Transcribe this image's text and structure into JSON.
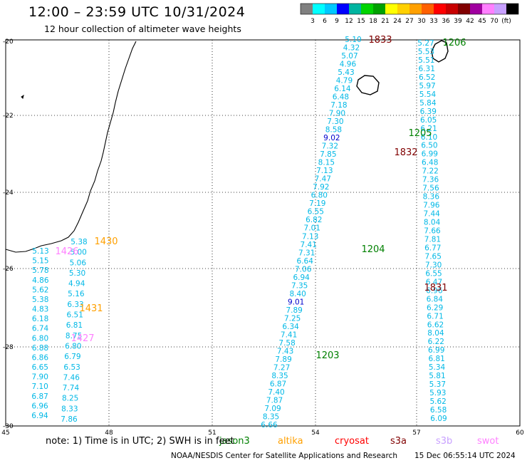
{
  "header": {
    "title": "12:00 – 23:59 UTC 10/31/2024",
    "subtitle": "12 hour collection of altimeter wave heights"
  },
  "colorbar": {
    "colors": [
      "#808080",
      "#00ffff",
      "#00c8ff",
      "#0000ff",
      "#00b4a0",
      "#00d400",
      "#00a000",
      "#ffff00",
      "#ffd000",
      "#ffa000",
      "#ff6000",
      "#ff0000",
      "#c80000",
      "#800000",
      "#a000a0",
      "#ff80ff",
      "#c8a0ff",
      "#000000"
    ],
    "labels": [
      "3",
      "6",
      "9",
      "12",
      "15",
      "18",
      "21",
      "24",
      "27",
      "30",
      "33",
      "36",
      "39",
      "42",
      "45",
      "70",
      "(ft)"
    ]
  },
  "axes": {
    "lat_labels": [
      "-20",
      "-22",
      "-24",
      "-26",
      "-28",
      "-30"
    ],
    "lon_labels": [
      "45",
      "48",
      "51",
      "54",
      "57",
      "60"
    ]
  },
  "passes": [
    {
      "label": "1833",
      "color": "#800000"
    },
    {
      "label": "1206",
      "color": "#008000"
    },
    {
      "label": "1205",
      "color": "#008000"
    },
    {
      "label": "1832",
      "color": "#800000"
    },
    {
      "label": "1430",
      "color": "#ffa000"
    },
    {
      "label": "1426",
      "color": "#ff80ff"
    },
    {
      "label": "1204",
      "color": "#008000"
    },
    {
      "label": "1831",
      "color": "#800000"
    },
    {
      "label": "1431",
      "color": "#ffa000"
    },
    {
      "label": "1427",
      "color": "#ff80ff"
    },
    {
      "label": "1203",
      "color": "#008000"
    }
  ],
  "swh": {
    "track_1833": [
      "5.10",
      "4.32",
      "5.07",
      "4.96",
      "5.43",
      "4.79",
      "6.14",
      "6.48",
      "7.18",
      "7.90",
      "7.30",
      "8.58",
      "9.02",
      "7.32",
      "7.85",
      "8.15",
      "7.13",
      "7.47",
      "7.92",
      "6.80",
      "7.19",
      "6.55",
      "6.82",
      "7.01",
      "7.13",
      "7.41",
      "7.31",
      "6.64",
      "7.06",
      "6.94",
      "7.35",
      "8.40",
      "9.01",
      "7.89",
      "7.25",
      "6.34",
      "7.41",
      "7.58",
      "7.43",
      "7.89",
      "7.27",
      "8.35",
      "6.87",
      "7.40",
      "7.87",
      "7.09",
      "8.35",
      "6.66"
    ],
    "track_1206": [
      "5.27",
      "5.53",
      "5.51",
      "6.31",
      "6.52",
      "5.97",
      "5.54",
      "5.84",
      "6.39",
      "6.05",
      "6.21",
      "6.10",
      "6.50",
      "6.99",
      "6.48",
      "7.22",
      "7.36",
      "7.56",
      "8.36",
      "7.96",
      "7.44",
      "8.04",
      "7.66",
      "7.81",
      "6.77",
      "7.65",
      "7.30",
      "6.55",
      "6.47",
      "6.96",
      "6.84",
      "6.29",
      "6.71",
      "6.62",
      "8.04",
      "6.22",
      "6.99",
      "6.81",
      "5.34",
      "5.81",
      "5.37",
      "5.93",
      "5.62",
      "6.58",
      "6.09"
    ],
    "track_1430": [
      "5.38",
      "5.00",
      "5.06",
      "5.30",
      "4.94",
      "5.16",
      "6.33",
      "6.51",
      "6.81",
      "8.75",
      "6.80",
      "6.79",
      "6.53",
      "7.46",
      "7.74",
      "8.25",
      "8.33",
      "7.86"
    ],
    "track_1431": [
      "5.13",
      "5.15",
      "5.78",
      "4.86",
      "5.62",
      "5.38",
      "4.83",
      "6.18",
      "6.74",
      "6.80",
      "6.88",
      "6.86",
      "6.65",
      "7.90",
      "7.10",
      "6.87",
      "6.96",
      "6.94"
    ]
  },
  "note": {
    "text": "note: 1) Time is in UTC; 2) SWH is in feet"
  },
  "legend": [
    {
      "label": "jason3",
      "color": "#008000"
    },
    {
      "label": "altika",
      "color": "#ffa000"
    },
    {
      "label": "cryosat",
      "color": "#ff0000"
    },
    {
      "label": "s3a",
      "color": "#800000"
    },
    {
      "label": "s3b",
      "color": "#c8a0ff"
    },
    {
      "label": "swot",
      "color": "#ff80ff"
    }
  ],
  "footer": {
    "credit": "NOAA/NESDIS Center for Satellite Applications and Research",
    "timestamp": "15 Dec 06:55:14 UTC 2024"
  }
}
